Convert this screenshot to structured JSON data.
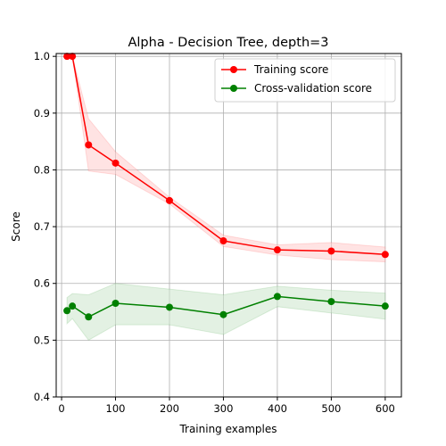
{
  "chart_data": {
    "type": "line",
    "title": "Alpha - Decision Tree, depth=3",
    "xlabel": "Training examples",
    "ylabel": "Score",
    "xlim": [
      -10,
      630
    ],
    "ylim": [
      0.4,
      1.005
    ],
    "xticks": [
      0,
      100,
      200,
      300,
      400,
      500,
      600
    ],
    "yticks": [
      0.4,
      0.5,
      0.6,
      0.7,
      0.8,
      0.9,
      1.0
    ],
    "xtick_labels": [
      "0",
      "100",
      "200",
      "300",
      "400",
      "500",
      "600"
    ],
    "ytick_labels": [
      "0.4",
      "0.5",
      "0.6",
      "0.7",
      "0.8",
      "0.9",
      "1.0"
    ],
    "grid": true,
    "legend_position": "top-right",
    "x": [
      10,
      20,
      50,
      100,
      200,
      300,
      400,
      500,
      600
    ],
    "series": [
      {
        "name": "Training score",
        "color": "#ff0000",
        "band_color": "#ffcccc",
        "values": [
          1.0,
          1.0,
          0.844,
          0.812,
          0.746,
          0.675,
          0.659,
          0.657,
          0.651
        ],
        "upper": [
          1.0,
          1.0,
          0.89,
          0.832,
          0.752,
          0.685,
          0.668,
          0.672,
          0.664
        ],
        "lower": [
          1.0,
          1.0,
          0.798,
          0.792,
          0.74,
          0.665,
          0.65,
          0.642,
          0.638
        ]
      },
      {
        "name": "Cross-validation score",
        "color": "#008000",
        "band_color": "#cce6cc",
        "values": [
          0.552,
          0.56,
          0.541,
          0.565,
          0.558,
          0.545,
          0.577,
          0.568,
          0.56
        ],
        "upper": [
          0.575,
          0.582,
          0.58,
          0.6,
          0.59,
          0.58,
          0.595,
          0.588,
          0.583
        ],
        "lower": [
          0.529,
          0.538,
          0.5,
          0.527,
          0.527,
          0.51,
          0.559,
          0.548,
          0.537
        ]
      }
    ]
  }
}
